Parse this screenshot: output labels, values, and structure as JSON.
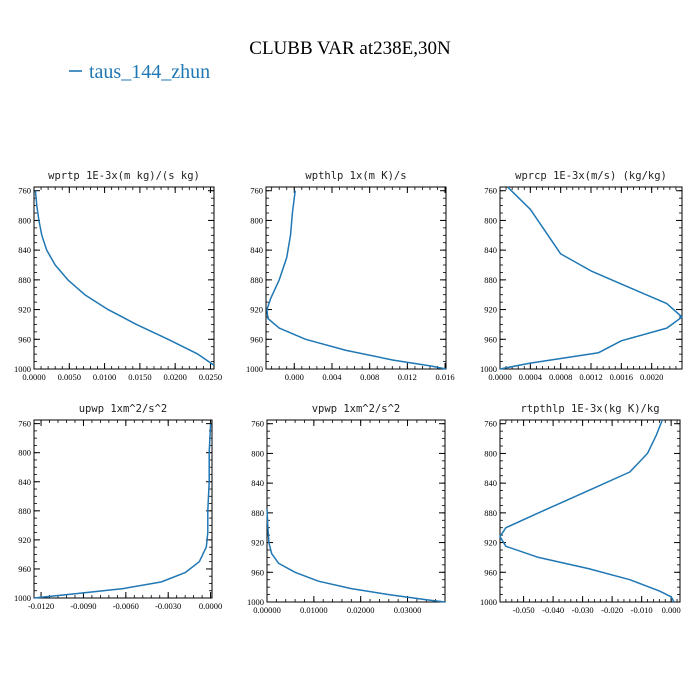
{
  "figure": {
    "title": "CLUBB VAR at238E,30N",
    "legend": {
      "label": "taus_144_zhun",
      "color": "#1f77b4"
    }
  },
  "chart_data": [
    {
      "type": "line",
      "title": "wprtp  1E-3x(m kg)/(s kg)",
      "xlim": [
        0,
        0.0255
      ],
      "ylim": [
        1000,
        755
      ],
      "xticks": [
        0,
        0.005,
        0.01,
        0.015,
        0.02,
        0.025
      ],
      "xtick_labels": [
        "0.0000",
        "0.0050",
        "0.0100",
        "0.0150",
        "0.0200",
        "0.0250"
      ],
      "yticks": [
        760,
        800,
        840,
        880,
        920,
        960,
        1000
      ],
      "series": [
        {
          "color": "#1f77b4",
          "x": [
            0.0002,
            0.0004,
            0.0007,
            0.0011,
            0.0018,
            0.003,
            0.0048,
            0.0072,
            0.0105,
            0.0145,
            0.019,
            0.0232,
            0.0255
          ],
          "y": [
            760,
            780,
            800,
            820,
            840,
            860,
            880,
            900,
            920,
            940,
            960,
            980,
            995
          ]
        }
      ]
    },
    {
      "type": "line",
      "title": "wpthlp  1x(m K)/s",
      "xlim": [
        -0.003,
        0.0161
      ],
      "ylim": [
        1000,
        755
      ],
      "xticks": [
        0,
        0.004,
        0.008,
        0.012,
        0.016
      ],
      "xtick_labels": [
        "0.000",
        "0.004",
        "0.008",
        "0.012",
        "0.016"
      ],
      "yticks": [
        760,
        800,
        840,
        880,
        920,
        960,
        1000
      ],
      "series": [
        {
          "color": "#1f77b4",
          "x": [
            0.0001,
            -0.0002,
            -0.0004,
            -0.0008,
            -0.0016,
            -0.0025,
            -0.0029,
            -0.0028,
            -0.0016,
            0.0012,
            0.0055,
            0.0105,
            0.0145,
            0.0161
          ],
          "y": [
            760,
            790,
            820,
            850,
            880,
            905,
            920,
            932,
            945,
            960,
            975,
            988,
            996,
            1000
          ]
        }
      ]
    },
    {
      "type": "line",
      "title": "wprcp  1E-3x(m/s) (kg/kg)",
      "xlim": [
        0,
        0.0024
      ],
      "ylim": [
        1000,
        755
      ],
      "xticks": [
        0,
        0.0004,
        0.0008,
        0.0012,
        0.0016,
        0.002
      ],
      "xtick_labels": [
        "0.0000",
        "0.0004",
        "0.0008",
        "0.0012",
        "0.0016",
        "0.0020"
      ],
      "yticks": [
        760,
        800,
        840,
        880,
        920,
        960,
        1000
      ],
      "series": [
        {
          "color": "#1f77b4",
          "x": [
            0.0001,
            0.0004,
            0.0006,
            0.0008,
            0.0012,
            0.0017,
            0.0022,
            0.0024,
            0.0022,
            0.0016,
            0.0013,
            0.0004,
            0.0
          ],
          "y": [
            755,
            785,
            815,
            845,
            868,
            890,
            912,
            930,
            945,
            962,
            978,
            992,
            1000
          ]
        }
      ]
    },
    {
      "type": "line",
      "title": "upwp  1xm^2/s^2",
      "xlim": [
        -0.0125,
        0.0001
      ],
      "ylim": [
        1000,
        755
      ],
      "xticks": [
        -0.012,
        -0.009,
        -0.006,
        -0.003,
        0
      ],
      "xtick_labels": [
        "-0.0120",
        "-0.0090",
        "-0.0060",
        "-0.0030",
        "0.0000"
      ],
      "yticks": [
        760,
        800,
        840,
        880,
        920,
        960,
        1000
      ],
      "series": [
        {
          "color": "#1f77b4",
          "x": [
            0.0,
            -0.0001,
            -0.0001,
            -0.0002,
            -0.0002,
            -0.0003,
            -0.0008,
            -0.0018,
            -0.0035,
            -0.0062,
            -0.0095,
            -0.0125
          ],
          "y": [
            760,
            800,
            840,
            880,
            910,
            930,
            950,
            965,
            978,
            987,
            994,
            1000
          ]
        }
      ]
    },
    {
      "type": "line",
      "title": "vpwp  1xm^2/s^2",
      "xlim": [
        0,
        0.038
      ],
      "ylim": [
        1000,
        755
      ],
      "xticks": [
        0,
        0.01,
        0.02,
        0.03
      ],
      "xtick_labels": [
        "0.00000",
        "0.01000",
        "0.02000",
        "0.03000"
      ],
      "yticks": [
        760,
        800,
        840,
        880,
        920,
        960,
        1000
      ],
      "series": [
        {
          "color": "#1f77b4",
          "x": [
            0.0,
            0.0002,
            0.0004,
            0.001,
            0.0025,
            0.006,
            0.011,
            0.018,
            0.026,
            0.034,
            0.038
          ],
          "y": [
            875,
            900,
            920,
            935,
            948,
            960,
            972,
            982,
            990,
            997,
            1000
          ]
        }
      ]
    },
    {
      "type": "line",
      "title": "rtpthlp  1E-3x(kg K)/kg",
      "xlim": [
        -0.058,
        0.003
      ],
      "ylim": [
        1000,
        755
      ],
      "xticks": [
        -0.05,
        -0.04,
        -0.03,
        -0.02,
        -0.01,
        0
      ],
      "xtick_labels": [
        "-0.050",
        "-0.040",
        "-0.030",
        "-0.020",
        "-0.010",
        "0.000"
      ],
      "yticks": [
        760,
        800,
        840,
        880,
        920,
        960,
        1000
      ],
      "series": [
        {
          "color": "#1f77b4",
          "x": [
            -0.003,
            -0.005,
            -0.008,
            -0.014,
            -0.028,
            -0.045,
            -0.056,
            -0.058,
            -0.056,
            -0.045,
            -0.028,
            -0.014,
            -0.004,
            0.0,
            0.001
          ],
          "y": [
            755,
            775,
            800,
            825,
            850,
            880,
            900,
            912,
            925,
            940,
            955,
            970,
            985,
            993,
            1000
          ]
        }
      ]
    }
  ]
}
